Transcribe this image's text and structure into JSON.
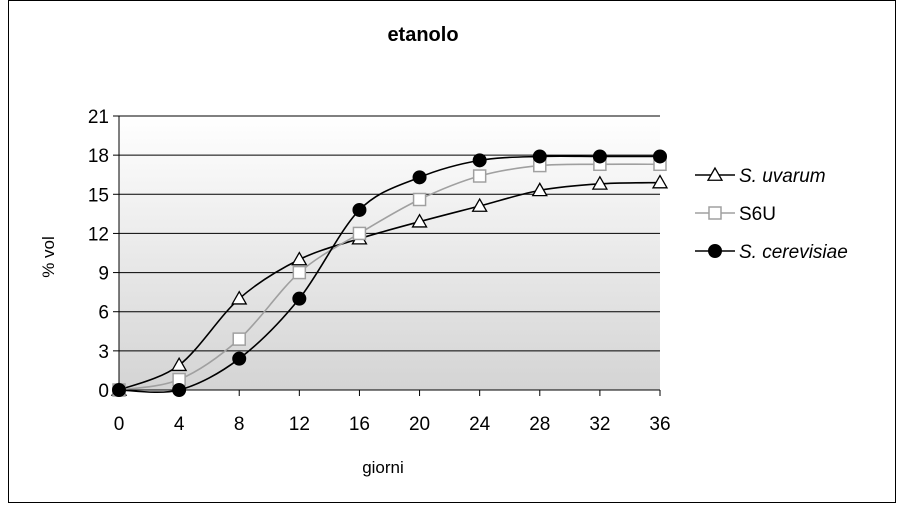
{
  "chart_data": {
    "type": "line",
    "title": "etanolo",
    "xlabel": "giorni",
    "ylabel": "% vol",
    "x": [
      0,
      4,
      8,
      12,
      16,
      20,
      24,
      28,
      32,
      36
    ],
    "xlim": [
      0,
      36
    ],
    "ylim": [
      0,
      21
    ],
    "yticks": [
      0,
      3,
      6,
      9,
      12,
      15,
      18,
      21
    ],
    "grid": "horizontal",
    "legend_position": "right",
    "series": [
      {
        "name": "S. uvarum",
        "italic": true,
        "marker": "triangle-open",
        "color": "#000000",
        "values": [
          0,
          1.9,
          7.0,
          10.0,
          11.6,
          12.9,
          14.1,
          15.3,
          15.8,
          15.9
        ]
      },
      {
        "name": "S6U",
        "italic": false,
        "marker": "square-open",
        "color": "#a0a0a0",
        "values": [
          0,
          0.8,
          3.9,
          9.0,
          12.0,
          14.6,
          16.4,
          17.2,
          17.3,
          17.3
        ]
      },
      {
        "name": "S. cerevisiae",
        "italic": true,
        "marker": "circle-filled",
        "color": "#000000",
        "values": [
          0,
          0,
          2.4,
          7.0,
          13.8,
          16.3,
          17.6,
          17.9,
          17.9,
          17.9
        ]
      }
    ]
  }
}
